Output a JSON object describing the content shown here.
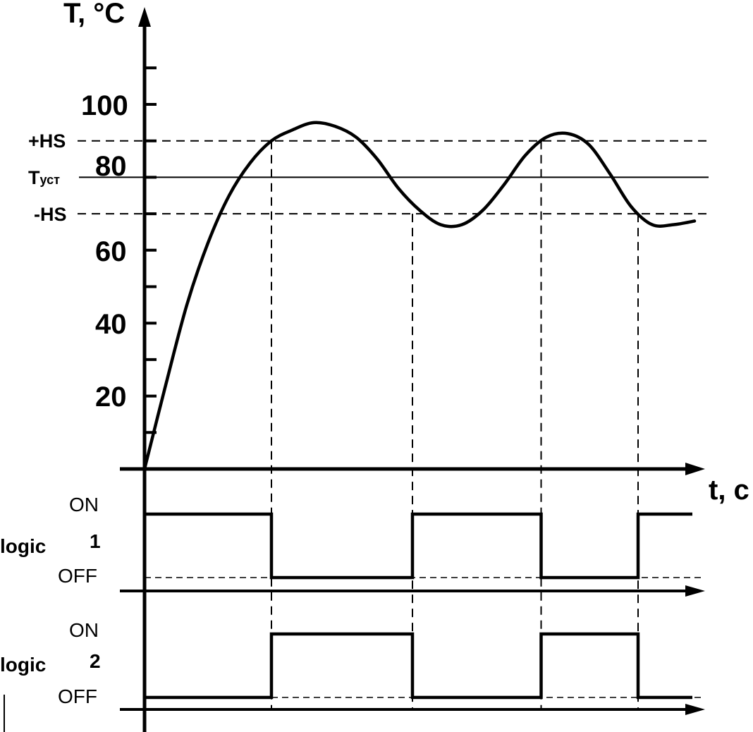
{
  "chart_data": {
    "type": "line",
    "y_axis_label": "T, °C",
    "x_axis_label": "t, c",
    "y_ticks": [
      "100",
      "80",
      "60",
      "40",
      "20"
    ],
    "thresholds": {
      "upper": {
        "label": "+HS",
        "value": 90
      },
      "setpoint": {
        "label_main": "T",
        "label_sub": "уст",
        "value": 80
      },
      "lower": {
        "label": "-HS",
        "value": 70
      }
    },
    "temperature_curve": {
      "t": [
        0,
        12,
        24,
        36,
        48,
        60,
        72,
        84,
        96,
        108,
        120,
        132,
        144,
        156,
        168,
        180,
        192,
        204,
        216,
        228,
        240,
        252,
        264,
        276,
        288,
        300,
        312
      ],
      "T": [
        0,
        23,
        45,
        62,
        75,
        84,
        90,
        93,
        95,
        94,
        91,
        85,
        77,
        71,
        67,
        67,
        71,
        78,
        86,
        91,
        92,
        89,
        81,
        72,
        67,
        67,
        68
      ]
    },
    "switch_times": [
      72,
      152,
      225,
      280
    ],
    "logic1": {
      "label_word": "logic",
      "label_num": "1",
      "on_label": "ON",
      "off_label": "OFF",
      "initial_state": "on"
    },
    "logic2": {
      "label_word": "logic",
      "label_num": "2",
      "on_label": "ON",
      "off_label": "OFF",
      "initial_state": "off"
    }
  }
}
